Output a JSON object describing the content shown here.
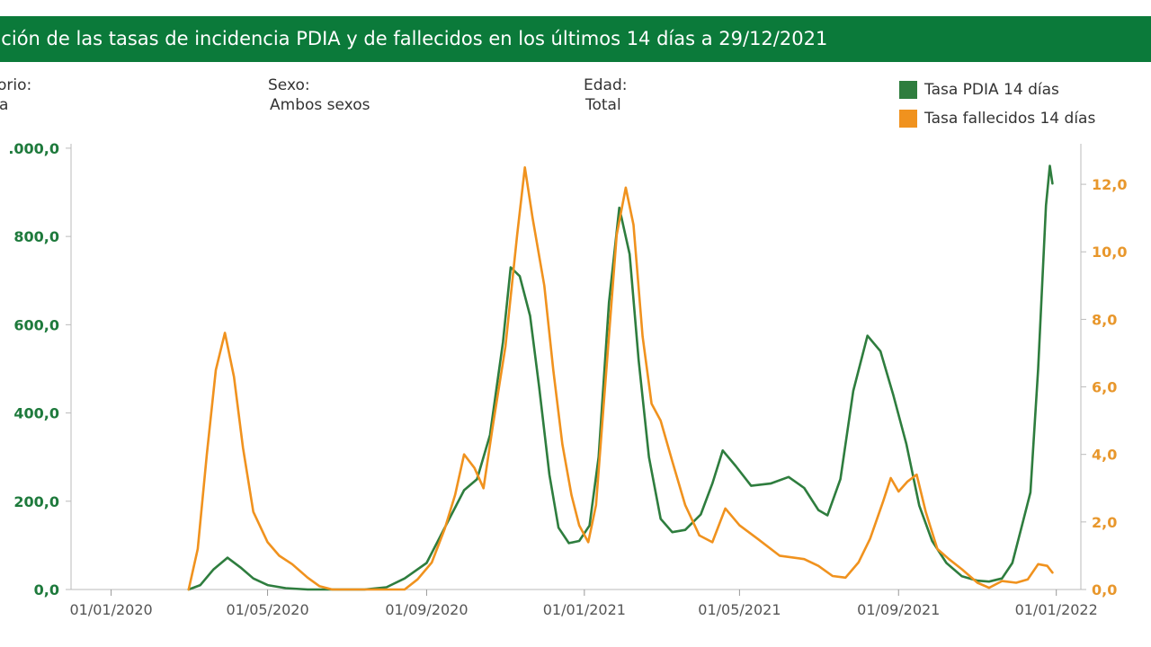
{
  "header": {
    "title": "ución de las tasas de incidencia PDIA y de fallecidos en los últimos 14 días a 29/12/2021"
  },
  "filters": [
    {
      "label": "orio:",
      "value": "a"
    },
    {
      "label": "Sexo:",
      "value": "Ambos sexos"
    },
    {
      "label": "Edad:",
      "value": "Total"
    }
  ],
  "colors": {
    "pdia": "#2e7d3e",
    "fallecidos": "#f0921e",
    "header": "#0b7a3a",
    "left_axis": "#1e7a3c",
    "right_axis": "#e8972c"
  },
  "chart_data": {
    "type": "line",
    "x_type": "date",
    "x_range": [
      "2019-12-01",
      "2022-01-20"
    ],
    "x_ticks": [
      "01/01/2020",
      "01/05/2020",
      "01/09/2020",
      "01/01/2021",
      "01/05/2021",
      "01/09/2021",
      "01/01/2022"
    ],
    "y_left": {
      "ticks": [
        "0,0",
        "200,0",
        "400,0",
        "600,0",
        "800,0",
        ".000,0"
      ],
      "tick_values": [
        0,
        200,
        400,
        600,
        800,
        1000
      ],
      "range": [
        0,
        1010
      ]
    },
    "y_right": {
      "ticks": [
        "0,0",
        "2,0",
        "4,0",
        "6,0",
        "8,0",
        "10,0",
        "12,0"
      ],
      "tick_values": [
        0,
        2,
        4,
        6,
        8,
        10,
        12
      ],
      "range": [
        0,
        13.2
      ]
    },
    "legend_position": "top-right",
    "series": [
      {
        "name": "Tasa PDIA 14 días",
        "axis": "left",
        "points": [
          [
            "2020-03-01",
            0
          ],
          [
            "2020-03-10",
            10
          ],
          [
            "2020-03-20",
            45
          ],
          [
            "2020-03-31",
            72
          ],
          [
            "2020-04-10",
            50
          ],
          [
            "2020-04-20",
            25
          ],
          [
            "2020-05-01",
            10
          ],
          [
            "2020-05-15",
            3
          ],
          [
            "2020-06-01",
            0
          ],
          [
            "2020-07-15",
            0
          ],
          [
            "2020-08-01",
            5
          ],
          [
            "2020-08-15",
            25
          ],
          [
            "2020-09-01",
            60
          ],
          [
            "2020-09-15",
            140
          ],
          [
            "2020-09-30",
            225
          ],
          [
            "2020-10-10",
            250
          ],
          [
            "2020-10-20",
            350
          ],
          [
            "2020-10-30",
            560
          ],
          [
            "2020-11-05",
            730
          ],
          [
            "2020-11-12",
            710
          ],
          [
            "2020-11-20",
            620
          ],
          [
            "2020-11-27",
            460
          ],
          [
            "2020-12-05",
            260
          ],
          [
            "2020-12-12",
            140
          ],
          [
            "2020-12-20",
            105
          ],
          [
            "2020-12-28",
            110
          ],
          [
            "2021-01-05",
            145
          ],
          [
            "2021-01-12",
            300
          ],
          [
            "2021-01-20",
            650
          ],
          [
            "2021-01-28",
            865
          ],
          [
            "2021-02-05",
            760
          ],
          [
            "2021-02-12",
            520
          ],
          [
            "2021-02-20",
            300
          ],
          [
            "2021-03-01",
            160
          ],
          [
            "2021-03-10",
            130
          ],
          [
            "2021-03-20",
            135
          ],
          [
            "2021-04-01",
            170
          ],
          [
            "2021-04-10",
            240
          ],
          [
            "2021-04-18",
            315
          ],
          [
            "2021-04-28",
            280
          ],
          [
            "2021-05-10",
            235
          ],
          [
            "2021-05-25",
            240
          ],
          [
            "2021-06-08",
            255
          ],
          [
            "2021-06-20",
            230
          ],
          [
            "2021-07-01",
            180
          ],
          [
            "2021-07-08",
            168
          ],
          [
            "2021-07-18",
            250
          ],
          [
            "2021-07-28",
            450
          ],
          [
            "2021-08-08",
            575
          ],
          [
            "2021-08-18",
            540
          ],
          [
            "2021-08-28",
            440
          ],
          [
            "2021-09-07",
            330
          ],
          [
            "2021-09-17",
            190
          ],
          [
            "2021-09-27",
            110
          ],
          [
            "2021-10-08",
            60
          ],
          [
            "2021-10-20",
            30
          ],
          [
            "2021-11-01",
            20
          ],
          [
            "2021-11-10",
            18
          ],
          [
            "2021-11-20",
            25
          ],
          [
            "2021-11-28",
            60
          ],
          [
            "2021-12-05",
            140
          ],
          [
            "2021-12-12",
            220
          ],
          [
            "2021-12-18",
            500
          ],
          [
            "2021-12-24",
            870
          ],
          [
            "2021-12-27",
            960
          ],
          [
            "2021-12-29",
            920
          ]
        ]
      },
      {
        "name": "Tasa fallecidos 14 días",
        "axis": "right",
        "points": [
          [
            "2020-03-01",
            0
          ],
          [
            "2020-03-08",
            1.2
          ],
          [
            "2020-03-15",
            4
          ],
          [
            "2020-03-22",
            6.5
          ],
          [
            "2020-03-29",
            7.6
          ],
          [
            "2020-04-05",
            6.3
          ],
          [
            "2020-04-12",
            4.2
          ],
          [
            "2020-04-20",
            2.3
          ],
          [
            "2020-05-01",
            1.4
          ],
          [
            "2020-05-10",
            1.0
          ],
          [
            "2020-05-20",
            0.75
          ],
          [
            "2020-06-01",
            0.35
          ],
          [
            "2020-06-10",
            0.1
          ],
          [
            "2020-06-20",
            0
          ],
          [
            "2020-08-15",
            0
          ],
          [
            "2020-08-25",
            0.3
          ],
          [
            "2020-09-05",
            0.8
          ],
          [
            "2020-09-15",
            1.8
          ],
          [
            "2020-09-23",
            2.8
          ],
          [
            "2020-09-30",
            4.0
          ],
          [
            "2020-10-08",
            3.6
          ],
          [
            "2020-10-15",
            3.0
          ],
          [
            "2020-10-22",
            4.8
          ],
          [
            "2020-11-01",
            7.2
          ],
          [
            "2020-11-10",
            10.5
          ],
          [
            "2020-11-16",
            12.5
          ],
          [
            "2020-11-22",
            11.0
          ],
          [
            "2020-12-01",
            9.0
          ],
          [
            "2020-12-08",
            6.5
          ],
          [
            "2020-12-15",
            4.3
          ],
          [
            "2020-12-22",
            2.8
          ],
          [
            "2020-12-28",
            1.9
          ],
          [
            "2021-01-04",
            1.4
          ],
          [
            "2021-01-10",
            2.5
          ],
          [
            "2021-01-18",
            6.5
          ],
          [
            "2021-01-26",
            10.5
          ],
          [
            "2021-02-02",
            11.9
          ],
          [
            "2021-02-08",
            10.8
          ],
          [
            "2021-02-15",
            7.5
          ],
          [
            "2021-02-22",
            5.5
          ],
          [
            "2021-03-01",
            5.0
          ],
          [
            "2021-03-10",
            3.8
          ],
          [
            "2021-03-20",
            2.5
          ],
          [
            "2021-03-31",
            1.6
          ],
          [
            "2021-04-10",
            1.4
          ],
          [
            "2021-04-20",
            2.4
          ],
          [
            "2021-05-01",
            1.9
          ],
          [
            "2021-05-15",
            1.5
          ],
          [
            "2021-06-01",
            1.0
          ],
          [
            "2021-06-20",
            0.9
          ],
          [
            "2021-07-01",
            0.7
          ],
          [
            "2021-07-12",
            0.4
          ],
          [
            "2021-07-22",
            0.35
          ],
          [
            "2021-08-01",
            0.8
          ],
          [
            "2021-08-10",
            1.5
          ],
          [
            "2021-08-20",
            2.6
          ],
          [
            "2021-08-26",
            3.3
          ],
          [
            "2021-09-01",
            2.9
          ],
          [
            "2021-09-08",
            3.2
          ],
          [
            "2021-09-15",
            3.4
          ],
          [
            "2021-09-22",
            2.3
          ],
          [
            "2021-10-01",
            1.2
          ],
          [
            "2021-10-10",
            0.9
          ],
          [
            "2021-10-20",
            0.6
          ],
          [
            "2021-11-01",
            0.2
          ],
          [
            "2021-11-10",
            0.05
          ],
          [
            "2021-11-20",
            0.25
          ],
          [
            "2021-12-01",
            0.2
          ],
          [
            "2021-12-10",
            0.3
          ],
          [
            "2021-12-18",
            0.75
          ],
          [
            "2021-12-25",
            0.7
          ],
          [
            "2021-12-29",
            0.5
          ]
        ]
      }
    ]
  }
}
